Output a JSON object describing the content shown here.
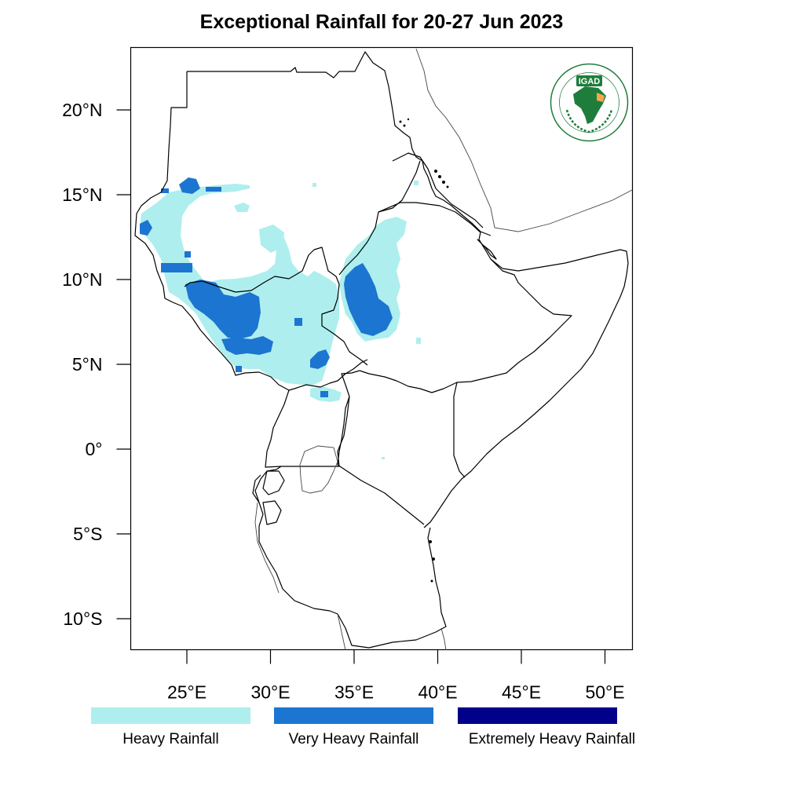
{
  "title": "Exceptional Rainfall for 20-27 Jun 2023",
  "logo_text": "IGAD",
  "logo_ring_text": "INTERGOVERNMENTAL AUTHORITY ON DEVELOPMENT · AUTORITE INTERGOUVERNEMENTALE POUR LE DEVELOPPEMENT",
  "lat_ticks": [
    {
      "value": 20,
      "label": "20°N"
    },
    {
      "value": 15,
      "label": "15°N"
    },
    {
      "value": 10,
      "label": "10°N"
    },
    {
      "value": 5,
      "label": "5°N"
    },
    {
      "value": 0,
      "label": "0°"
    },
    {
      "value": -5,
      "label": "5°S"
    },
    {
      "value": -10,
      "label": "10°S"
    }
  ],
  "lon_ticks": [
    {
      "value": 25,
      "label": "25°E"
    },
    {
      "value": 30,
      "label": "30°E"
    },
    {
      "value": 35,
      "label": "35°E"
    },
    {
      "value": 40,
      "label": "40°E"
    },
    {
      "value": 45,
      "label": "45°E"
    },
    {
      "value": 50,
      "label": "50°E"
    }
  ],
  "legend": [
    {
      "label": "Heavy Rainfall",
      "color": "#aeeeee"
    },
    {
      "label": "Very Heavy Rainfall",
      "color": "#1c75d0"
    },
    {
      "label": "Extremely Heavy Rainfall",
      "color": "#00008b"
    }
  ],
  "colors": {
    "heavy": "#aeeeee",
    "very_heavy": "#1c75d0",
    "extremely_heavy": "#00008b",
    "logo_green": "#1e7d3b",
    "logo_orange": "#f3a94b"
  }
}
